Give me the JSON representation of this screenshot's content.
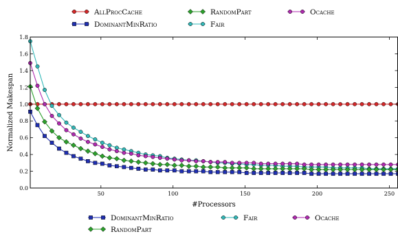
{
  "chart_data": {
    "type": "line",
    "title": "",
    "xlabel": "#Processors",
    "ylabel": "Normalized Makespan",
    "xlim": [
      1,
      256
    ],
    "ylim": [
      0.0,
      1.8
    ],
    "x_ticks": [
      50,
      100,
      150,
      200,
      250
    ],
    "y_ticks": [
      0.0,
      0.2,
      0.4,
      0.6,
      0.8,
      1.0,
      1.2,
      1.4,
      1.6,
      1.8
    ],
    "grid": false,
    "legends": [
      {
        "placement": "top",
        "entries": [
          {
            "name": "AllProcCache",
            "color": "#d62728",
            "marker": "circle"
          },
          {
            "name": "RandomPart",
            "color": "#2ca02c",
            "marker": "diamond"
          },
          {
            "name": "Ocache",
            "color": "#b02ab0",
            "marker": "circle"
          },
          {
            "name": "DominantMinRatio",
            "color": "#1f2fb4",
            "marker": "square"
          },
          {
            "name": "Fair",
            "color": "#32b8b8",
            "marker": "circle"
          }
        ]
      },
      {
        "placement": "bottom",
        "entries": [
          {
            "name": "DominantMinRatio",
            "color": "#1f2fb4",
            "marker": "square"
          },
          {
            "name": "Fair",
            "color": "#32b8b8",
            "marker": "circle"
          },
          {
            "name": "Ocache",
            "color": "#b02ab0",
            "marker": "circle"
          },
          {
            "name": "RandomPart",
            "color": "#2ca02c",
            "marker": "diamond"
          }
        ]
      }
    ],
    "x": [
      1,
      6,
      11,
      16,
      21,
      26,
      31,
      36,
      41,
      46,
      51,
      56,
      61,
      66,
      71,
      76,
      81,
      86,
      91,
      96,
      101,
      106,
      111,
      116,
      121,
      126,
      131,
      136,
      141,
      146,
      151,
      156,
      161,
      166,
      171,
      176,
      181,
      186,
      191,
      196,
      201,
      206,
      211,
      216,
      221,
      226,
      231,
      236,
      241,
      246,
      251,
      256
    ],
    "series": [
      {
        "name": "AllProcCache",
        "color": "#d62728",
        "marker": "circle",
        "values": [
          1.0,
          1.0,
          1.0,
          1.0,
          1.0,
          1.0,
          1.0,
          1.0,
          1.0,
          1.0,
          1.0,
          1.0,
          1.0,
          1.0,
          1.0,
          1.0,
          1.0,
          1.0,
          1.0,
          1.0,
          1.0,
          1.0,
          1.0,
          1.0,
          1.0,
          1.0,
          1.0,
          1.0,
          1.0,
          1.0,
          1.0,
          1.0,
          1.0,
          1.0,
          1.0,
          1.0,
          1.0,
          1.0,
          1.0,
          1.0,
          1.0,
          1.0,
          1.0,
          1.0,
          1.0,
          1.0,
          1.0,
          1.0,
          1.0,
          1.0,
          1.0,
          1.0
        ]
      },
      {
        "name": "Fair",
        "color": "#32b8b8",
        "marker": "circle",
        "values": [
          1.75,
          1.45,
          1.17,
          0.98,
          0.87,
          0.78,
          0.72,
          0.67,
          0.62,
          0.58,
          0.54,
          0.51,
          0.48,
          0.46,
          0.44,
          0.42,
          0.4,
          0.39,
          0.38,
          0.36,
          0.35,
          0.34,
          0.33,
          0.33,
          0.32,
          0.31,
          0.3,
          0.3,
          0.29,
          0.29,
          0.28,
          0.28,
          0.27,
          0.27,
          0.27,
          0.26,
          0.26,
          0.26,
          0.25,
          0.25,
          0.25,
          0.25,
          0.24,
          0.24,
          0.24,
          0.24,
          0.24,
          0.23,
          0.23,
          0.23,
          0.23,
          0.23
        ]
      },
      {
        "name": "Ocache",
        "color": "#b02ab0",
        "marker": "circle",
        "values": [
          1.49,
          1.22,
          1.0,
          0.86,
          0.77,
          0.69,
          0.64,
          0.59,
          0.55,
          0.52,
          0.49,
          0.46,
          0.44,
          0.42,
          0.41,
          0.39,
          0.38,
          0.37,
          0.36,
          0.35,
          0.34,
          0.33,
          0.33,
          0.32,
          0.32,
          0.31,
          0.31,
          0.31,
          0.3,
          0.3,
          0.3,
          0.3,
          0.29,
          0.29,
          0.29,
          0.29,
          0.29,
          0.29,
          0.28,
          0.28,
          0.28,
          0.28,
          0.28,
          0.28,
          0.28,
          0.28,
          0.28,
          0.28,
          0.28,
          0.28,
          0.28,
          0.28
        ]
      },
      {
        "name": "RandomPart",
        "color": "#2ca02c",
        "marker": "diamond",
        "values": [
          1.21,
          0.95,
          0.79,
          0.68,
          0.6,
          0.55,
          0.51,
          0.47,
          0.44,
          0.41,
          0.38,
          0.36,
          0.35,
          0.33,
          0.32,
          0.31,
          0.3,
          0.29,
          0.28,
          0.28,
          0.27,
          0.27,
          0.26,
          0.26,
          0.25,
          0.25,
          0.25,
          0.24,
          0.24,
          0.24,
          0.24,
          0.23,
          0.23,
          0.23,
          0.23,
          0.23,
          0.23,
          0.23,
          0.23,
          0.22,
          0.22,
          0.22,
          0.22,
          0.22,
          0.22,
          0.22,
          0.22,
          0.22,
          0.22,
          0.22,
          0.22,
          0.22
        ]
      },
      {
        "name": "DominantMinRatio",
        "color": "#1f2fb4",
        "marker": "square",
        "values": [
          0.91,
          0.75,
          0.62,
          0.54,
          0.47,
          0.42,
          0.38,
          0.35,
          0.32,
          0.3,
          0.29,
          0.27,
          0.26,
          0.25,
          0.24,
          0.23,
          0.22,
          0.22,
          0.21,
          0.21,
          0.21,
          0.2,
          0.2,
          0.2,
          0.2,
          0.19,
          0.19,
          0.19,
          0.19,
          0.19,
          0.18,
          0.18,
          0.18,
          0.18,
          0.18,
          0.18,
          0.18,
          0.18,
          0.18,
          0.17,
          0.17,
          0.17,
          0.17,
          0.17,
          0.17,
          0.17,
          0.17,
          0.17,
          0.17,
          0.17,
          0.17,
          0.17
        ]
      }
    ]
  }
}
